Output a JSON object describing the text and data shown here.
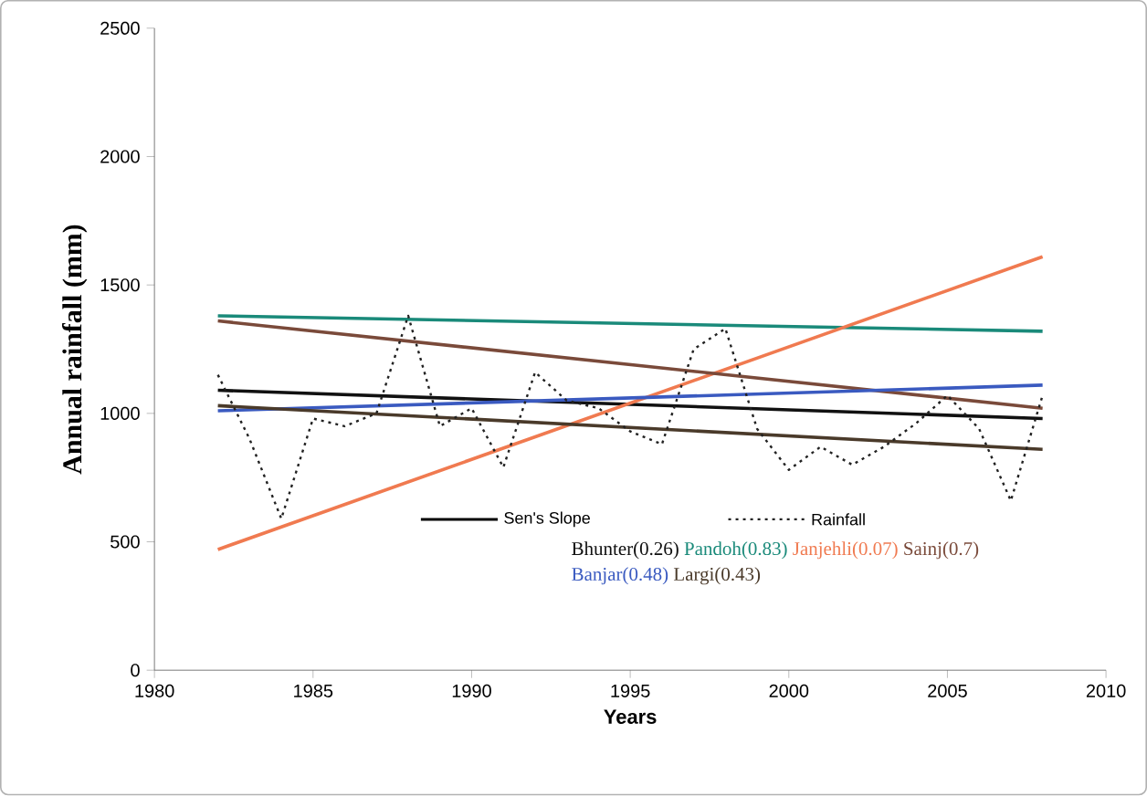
{
  "chart_data": {
    "type": "line",
    "xlabel": "Years",
    "ylabel": "Annual rainfall (mm)",
    "xlim": [
      1980,
      2010
    ],
    "xticks": [
      1980,
      1985,
      1990,
      1995,
      2000,
      2005,
      2010
    ],
    "ylim": [
      0,
      2500
    ],
    "yticks": [
      0,
      500,
      1000,
      1500,
      2000,
      2500
    ],
    "grid": false,
    "legend": "bottom",
    "marker": "none",
    "annotations": [
      "Sen's Slope"
    ],
    "series": [
      {
        "name": "Bhunter(0.26)",
        "color": "#111111",
        "x": [
          1982,
          2008
        ],
        "values": [
          1090,
          980
        ],
        "line_style": "solid"
      },
      {
        "name": "Pandoh(0.83)",
        "color": "#1a8a7a",
        "x": [
          1982,
          2008
        ],
        "values": [
          1380,
          1320
        ],
        "line_style": "solid"
      },
      {
        "name": "Janjehli(0.07)",
        "color": "#f07a50",
        "x": [
          1982,
          2008
        ],
        "values": [
          470,
          1610
        ],
        "line_style": "solid"
      },
      {
        "name": "Sainj(0.7)",
        "color": "#7a4a3a",
        "x": [
          1982,
          2008
        ],
        "values": [
          1360,
          1020
        ],
        "line_style": "solid"
      },
      {
        "name": "Banjar(0.48)",
        "color": "#3a5ac0",
        "x": [
          1982,
          2008
        ],
        "values": [
          1010,
          1110
        ],
        "line_style": "solid"
      },
      {
        "name": "Largi(0.43)",
        "color": "#4a3a2a",
        "x": [
          1982,
          2008
        ],
        "values": [
          1030,
          860
        ],
        "line_style": "solid"
      },
      {
        "name": "Rainfall",
        "color": "#222222",
        "line_style": "dotted",
        "x": [
          1982,
          1983,
          1984,
          1985,
          1986,
          1987,
          1988,
          1989,
          1990,
          1991,
          1992,
          1993,
          1994,
          1995,
          1996,
          1997,
          1998,
          1999,
          2000,
          2001,
          2002,
          2003,
          2004,
          2005,
          2006,
          2007,
          2008
        ],
        "values": [
          1150,
          900,
          590,
          980,
          950,
          1000,
          1380,
          950,
          1020,
          790,
          1160,
          1050,
          1020,
          930,
          880,
          1250,
          1330,
          940,
          780,
          870,
          800,
          870,
          960,
          1070,
          940,
          660,
          1070
        ]
      }
    ]
  }
}
